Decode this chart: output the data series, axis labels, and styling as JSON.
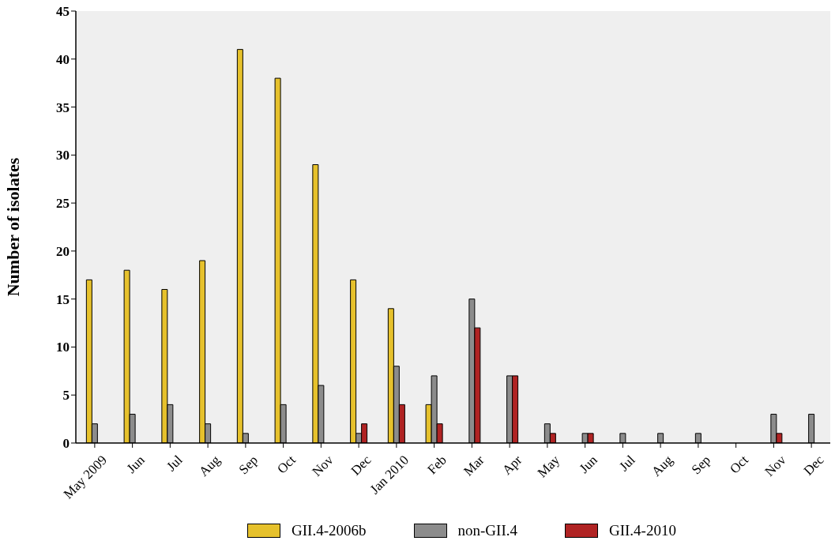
{
  "chart_data": {
    "type": "bar",
    "ylabel": "Number of isolates",
    "categories": [
      "May 2009",
      "Jun",
      "Jul",
      "Aug",
      "Sep",
      "Oct",
      "Nov",
      "Dec",
      "Jan 2010",
      "Feb",
      "Mar",
      "Apr",
      "May",
      "Jun",
      "Jul",
      "Aug",
      "Sep",
      "Oct",
      "Nov",
      "Dec"
    ],
    "series": [
      {
        "name": "GII.4-2006b",
        "color": "#e6c12c",
        "values": [
          17,
          18,
          16,
          19,
          41,
          38,
          29,
          17,
          14,
          4,
          0,
          0,
          0,
          0,
          0,
          0,
          0,
          0,
          0,
          0
        ]
      },
      {
        "name": "non-GII.4",
        "color": "#8c8c8c",
        "values": [
          2,
          3,
          4,
          2,
          1,
          4,
          6,
          1,
          8,
          7,
          15,
          7,
          2,
          1,
          1,
          1,
          1,
          0,
          3,
          3
        ]
      },
      {
        "name": "GII.4-2010",
        "color": "#b02323",
        "values": [
          0,
          0,
          0,
          0,
          0,
          0,
          0,
          2,
          4,
          2,
          12,
          7,
          1,
          1,
          0,
          0,
          0,
          0,
          1,
          0
        ]
      }
    ],
    "ylim": [
      0,
      45
    ],
    "yticks": [
      0,
      5,
      10,
      15,
      20,
      25,
      30,
      35,
      40,
      45
    ],
    "grid": false,
    "legend": "bottom"
  }
}
